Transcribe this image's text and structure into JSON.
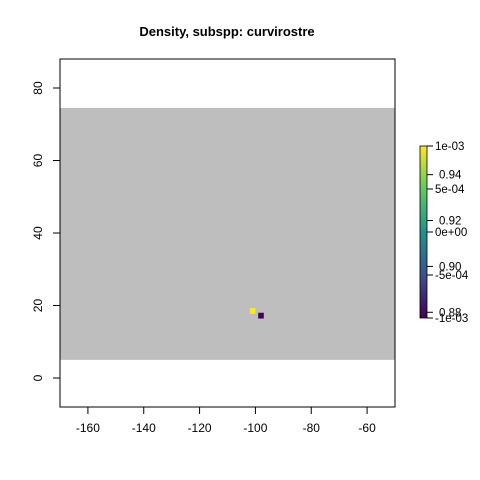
{
  "chart_data": {
    "type": "heatmap",
    "title": "Density, subspp: curvirostre",
    "xlabel": "",
    "ylabel": "",
    "xlim": [
      -170,
      -50
    ],
    "ylim": [
      -8,
      88
    ],
    "x_ticks": [
      -160,
      -140,
      -120,
      -100,
      -80,
      -60
    ],
    "y_ticks": [
      0,
      20,
      40,
      60,
      80
    ],
    "background_region": {
      "x": [
        -170,
        -50
      ],
      "y": [
        5,
        74.5
      ],
      "color": "#bebebe"
    },
    "cells": [
      {
        "x": -101,
        "y": 18.5,
        "width": 2,
        "height": 1.6,
        "value": 0.001,
        "color": "#fde725"
      },
      {
        "x": -98,
        "y": 17.2,
        "width": 2,
        "height": 1.6,
        "value": -0.001,
        "color": "#440154"
      }
    ],
    "legend": {
      "placement": "right",
      "colormap": [
        "#440154",
        "#3b528b",
        "#21918c",
        "#5ec962",
        "#fde725"
      ],
      "scale_outer": {
        "min": 0.8775,
        "max": 0.9525,
        "ticks": [
          {
            "value": 0.88,
            "label": "0.88"
          },
          {
            "value": 0.9,
            "label": "0.90"
          },
          {
            "value": 0.92,
            "label": "0.92"
          },
          {
            "value": 0.94,
            "label": "0.94"
          }
        ]
      },
      "scale_inner": {
        "min": -0.001,
        "max": 0.001,
        "ticks": [
          {
            "value": -0.001,
            "label": "-1e-03"
          },
          {
            "value": -0.0005,
            "label": "-5e-04"
          },
          {
            "value": 0,
            "label": "0e+00"
          },
          {
            "value": 0.0005,
            "label": "5e-04"
          },
          {
            "value": 0.001,
            "label": "1e-03"
          }
        ]
      }
    }
  }
}
